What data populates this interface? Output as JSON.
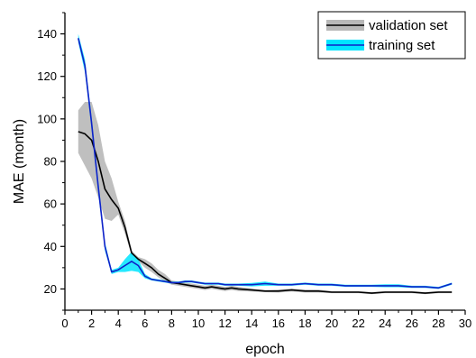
{
  "chart_data": {
    "type": "line",
    "xlabel": "epoch",
    "ylabel": "MAE (month)",
    "xlim": [
      0,
      30
    ],
    "ylim": [
      10,
      150
    ],
    "x_ticks": [
      "0",
      "2",
      "4",
      "6",
      "8",
      "10",
      "12",
      "14",
      "16",
      "18",
      "20",
      "22",
      "24",
      "26",
      "28",
      "30"
    ],
    "y_ticks": [
      "20",
      "40",
      "60",
      "80",
      "100",
      "120",
      "140"
    ],
    "grid": false,
    "legend_position": "top-right",
    "series": [
      {
        "name": "validation set",
        "line_color": "#000000",
        "band_color": "#b8b8b8",
        "x": [
          1,
          1.5,
          2,
          2.5,
          3,
          3.5,
          4,
          4.5,
          5,
          5.5,
          6,
          6.5,
          7,
          7.5,
          8,
          8.5,
          9,
          9.5,
          10,
          10.5,
          11,
          11.5,
          12,
          12.5,
          13,
          14,
          15,
          16,
          17,
          18,
          19,
          20,
          21,
          22,
          23,
          24,
          25,
          26,
          27,
          28,
          29
        ],
        "y": [
          94,
          93,
          90,
          80,
          67,
          62,
          58,
          49,
          37,
          34,
          32,
          30,
          27,
          25,
          23,
          22.5,
          22,
          21.5,
          21,
          20.5,
          21,
          20.5,
          20,
          20.5,
          20,
          19.5,
          19,
          19,
          19.5,
          19,
          19,
          18.5,
          18.5,
          18.5,
          18,
          18.5,
          18.5,
          18.5,
          18,
          18.5,
          18.5
        ],
        "lower": [
          84,
          78,
          72,
          63,
          53,
          52,
          55,
          46,
          36,
          33,
          30,
          28,
          25.5,
          23.5,
          22,
          21.5,
          21,
          20.5,
          20,
          19.5,
          20,
          19.5,
          19,
          19.5,
          19,
          18.8,
          18.5,
          18.3,
          18.8,
          18.3,
          18.3,
          18,
          18,
          18,
          17.5,
          18,
          18,
          18,
          17.5,
          18,
          18
        ],
        "upper": [
          104,
          108,
          108,
          97,
          80,
          72,
          61,
          52,
          38,
          35,
          34,
          32,
          29,
          27,
          24,
          23.5,
          23,
          22.5,
          22,
          21.5,
          22,
          21.5,
          21,
          21.5,
          21,
          20.2,
          19.5,
          19.7,
          20.2,
          19.7,
          19.7,
          19,
          19,
          19,
          18.5,
          19,
          19,
          19,
          18.5,
          19,
          19
        ]
      },
      {
        "name": "training set",
        "line_color": "#1020c8",
        "band_color": "#00e5ff",
        "x": [
          1,
          1.5,
          2,
          2.5,
          3,
          3.5,
          4,
          4.5,
          5,
          5.5,
          6,
          6.5,
          7,
          7.5,
          8,
          8.5,
          9,
          9.5,
          10,
          10.5,
          11,
          11.5,
          12,
          12.5,
          13,
          14,
          15,
          16,
          17,
          18,
          19,
          20,
          21,
          22,
          23,
          24,
          25,
          26,
          27,
          28,
          29
        ],
        "y": [
          138,
          125,
          98,
          68,
          40,
          28,
          29,
          31,
          33,
          31,
          26,
          24.5,
          24,
          23.5,
          23,
          23,
          23.5,
          23.5,
          23,
          22.5,
          22.5,
          22.5,
          22,
          22,
          22,
          22,
          22.5,
          22,
          22,
          22.5,
          22,
          22,
          21.5,
          21.5,
          21.5,
          21.5,
          21.5,
          21,
          21,
          20.5,
          22.5
        ],
        "lower": [
          136,
          122,
          95,
          65,
          38,
          27,
          28,
          28,
          28.5,
          28,
          25,
          24,
          23.5,
          23,
          22.5,
          22.5,
          23,
          23,
          22.5,
          22,
          22,
          22,
          21.5,
          21.5,
          21.5,
          21.2,
          21.5,
          21.5,
          21.5,
          22,
          21.5,
          21.5,
          21,
          21,
          21,
          20.8,
          20.8,
          20.5,
          20.5,
          20,
          22
        ],
        "upper": [
          140,
          128,
          101,
          71,
          42,
          29,
          30,
          34,
          37.5,
          34,
          27,
          25,
          24.5,
          24,
          23.5,
          23.5,
          24,
          24,
          23.5,
          23,
          23,
          23,
          22.5,
          22.5,
          22.5,
          22.8,
          23.5,
          22.5,
          22.5,
          23,
          22.5,
          22.5,
          22,
          22,
          22,
          22.2,
          22.2,
          21.5,
          21.5,
          21,
          23
        ]
      }
    ]
  }
}
